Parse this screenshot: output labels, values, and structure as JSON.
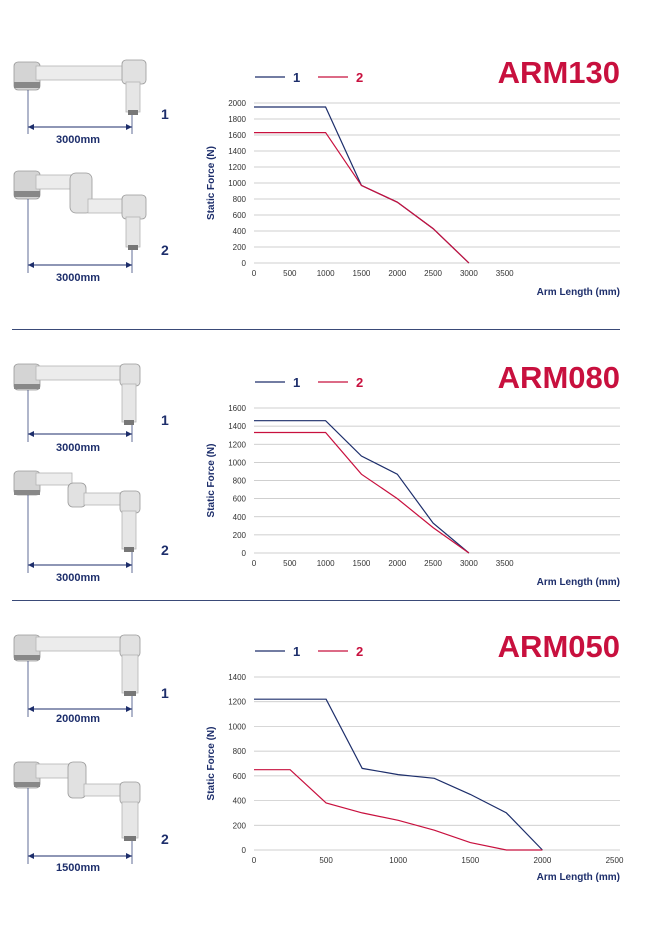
{
  "colors": {
    "series1": "#1d2e6b",
    "series2": "#c8103e",
    "grid": "#bfbfbf"
  },
  "sections": [
    {
      "model": "ARM130",
      "arm1": {
        "label": "3000mm",
        "number": "1"
      },
      "arm2": {
        "label": "3000mm",
        "number": "2"
      },
      "chart": {
        "type": "line",
        "ylabel": "Static Force (N)",
        "xlabel": "Arm Length (mm)",
        "xlim": [
          0,
          3500
        ],
        "ylim": [
          0,
          2000
        ],
        "xticks": [
          0,
          500,
          1000,
          1500,
          2000,
          2500,
          3000,
          3500
        ],
        "yticks": [
          0,
          200,
          400,
          600,
          800,
          1000,
          1200,
          1400,
          1600,
          1800,
          2000
        ],
        "legend": "top",
        "series": [
          {
            "name": "1",
            "points": [
              [
                0,
                1950
              ],
              [
                1000,
                1950
              ],
              [
                1500,
                970
              ],
              [
                2000,
                760
              ],
              [
                2500,
                430
              ],
              [
                3000,
                0
              ]
            ]
          },
          {
            "name": "2",
            "points": [
              [
                0,
                1630
              ],
              [
                1000,
                1630
              ],
              [
                1500,
                970
              ],
              [
                2000,
                760
              ],
              [
                2500,
                430
              ],
              [
                3000,
                0
              ]
            ]
          }
        ]
      }
    },
    {
      "model": "ARM080",
      "arm1": {
        "label": "3000mm",
        "number": "1"
      },
      "arm2": {
        "label": "3000mm",
        "number": "2"
      },
      "chart": {
        "type": "line",
        "ylabel": "Static Force (N)",
        "xlabel": "Arm Length (mm)",
        "xlim": [
          0,
          3500
        ],
        "ylim": [
          0,
          1600
        ],
        "xticks": [
          0,
          500,
          1000,
          1500,
          2000,
          2500,
          3000,
          3500
        ],
        "yticks": [
          0,
          200,
          400,
          600,
          800,
          1000,
          1200,
          1400,
          1600
        ],
        "legend": "top",
        "series": [
          {
            "name": "1",
            "points": [
              [
                0,
                1460
              ],
              [
                1000,
                1460
              ],
              [
                1500,
                1070
              ],
              [
                2000,
                870
              ],
              [
                2500,
                330
              ],
              [
                3000,
                0
              ]
            ]
          },
          {
            "name": "2",
            "points": [
              [
                0,
                1330
              ],
              [
                1000,
                1330
              ],
              [
                1500,
                870
              ],
              [
                2000,
                600
              ],
              [
                2500,
                280
              ],
              [
                3000,
                0
              ]
            ]
          }
        ]
      }
    },
    {
      "model": "ARM050",
      "arm1": {
        "label": "2000mm",
        "number": "1"
      },
      "arm2": {
        "label": "1500mm",
        "number": "2"
      },
      "chart": {
        "type": "line",
        "ylabel": "Static Force (N)",
        "xlabel": "Arm Length (mm)",
        "xlim": [
          0,
          2500
        ],
        "ylim": [
          0,
          1400
        ],
        "xticks": [
          0,
          500,
          1000,
          1500,
          2000,
          2500
        ],
        "yticks": [
          0,
          200,
          400,
          600,
          800,
          1000,
          1200,
          1400
        ],
        "legend": "top",
        "series": [
          {
            "name": "1",
            "points": [
              [
                0,
                1220
              ],
              [
                500,
                1220
              ],
              [
                750,
                660
              ],
              [
                1000,
                610
              ],
              [
                1250,
                580
              ],
              [
                1500,
                450
              ],
              [
                1750,
                300
              ],
              [
                2000,
                0
              ]
            ]
          },
          {
            "name": "2",
            "points": [
              [
                0,
                650
              ],
              [
                250,
                650
              ],
              [
                500,
                380
              ],
              [
                750,
                300
              ],
              [
                1000,
                240
              ],
              [
                1250,
                160
              ],
              [
                1500,
                60
              ],
              [
                1750,
                0
              ],
              [
                2000,
                0
              ]
            ]
          }
        ]
      }
    }
  ]
}
